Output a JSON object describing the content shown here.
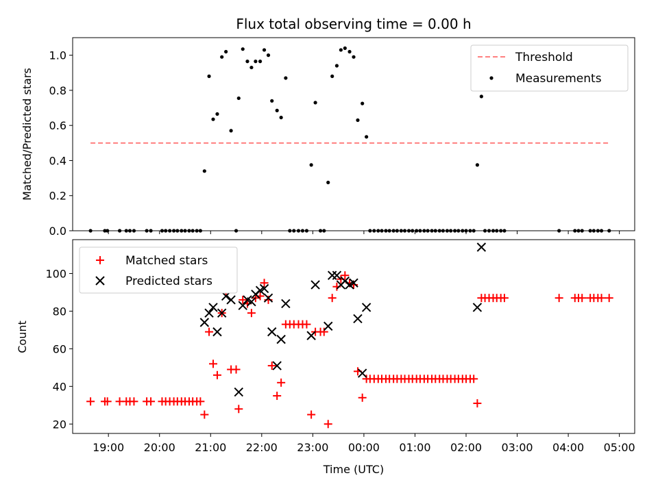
{
  "chart_data": [
    {
      "type": "scatter",
      "title": "Flux total observing time = 0.00 h",
      "ylabel": "Matched/Predicted stars",
      "xlabel": "",
      "xlim": [
        18.3,
        29.3
      ],
      "ylim": [
        0,
        1.1
      ],
      "yticks": [
        0.0,
        0.2,
        0.4,
        0.6,
        0.8,
        1.0
      ],
      "ytick_labels": [
        "0.0",
        "0.2",
        "0.4",
        "0.6",
        "0.8",
        "1.0"
      ],
      "legend_position": "top-right",
      "series": [
        {
          "name": "Threshold",
          "kind": "dashed-line",
          "color": "#ff7f7f",
          "points": [
            [
              18.65,
              0.5
            ],
            [
              28.8,
              0.5
            ]
          ]
        },
        {
          "name": "Measurements",
          "kind": "dot",
          "color": "#000000",
          "points": [
            [
              18.65,
              0
            ],
            [
              18.93,
              0
            ],
            [
              18.98,
              0
            ],
            [
              19.22,
              0
            ],
            [
              19.35,
              0
            ],
            [
              19.42,
              0
            ],
            [
              19.5,
              0
            ],
            [
              19.75,
              0
            ],
            [
              19.83,
              0
            ],
            [
              20.05,
              0
            ],
            [
              20.12,
              0
            ],
            [
              20.2,
              0
            ],
            [
              20.28,
              0
            ],
            [
              20.35,
              0
            ],
            [
              20.43,
              0
            ],
            [
              20.5,
              0
            ],
            [
              20.58,
              0
            ],
            [
              20.65,
              0
            ],
            [
              20.73,
              0
            ],
            [
              20.8,
              0
            ],
            [
              20.88,
              0.34
            ],
            [
              20.97,
              0.88
            ],
            [
              21.05,
              0.635
            ],
            [
              21.13,
              0.665
            ],
            [
              21.22,
              0.99
            ],
            [
              21.3,
              1.02
            ],
            [
              21.4,
              0.57
            ],
            [
              21.5,
              0
            ],
            [
              21.55,
              0.755
            ],
            [
              21.63,
              1.035
            ],
            [
              21.72,
              0.965
            ],
            [
              21.8,
              0.93
            ],
            [
              21.88,
              0.965
            ],
            [
              21.97,
              0.965
            ],
            [
              22.05,
              1.03
            ],
            [
              22.13,
              1.0
            ],
            [
              22.2,
              0.74
            ],
            [
              22.3,
              0.685
            ],
            [
              22.38,
              0.645
            ],
            [
              22.47,
              0.87
            ],
            [
              22.55,
              0
            ],
            [
              22.63,
              0
            ],
            [
              22.72,
              0
            ],
            [
              22.8,
              0
            ],
            [
              22.88,
              0
            ],
            [
              22.97,
              0.375
            ],
            [
              23.05,
              0.73
            ],
            [
              23.15,
              0
            ],
            [
              23.22,
              0
            ],
            [
              23.3,
              0.275
            ],
            [
              23.38,
              0.88
            ],
            [
              23.47,
              0.94
            ],
            [
              23.55,
              1.03
            ],
            [
              23.63,
              1.04
            ],
            [
              23.72,
              1.02
            ],
            [
              23.8,
              0.99
            ],
            [
              23.88,
              0.63
            ],
            [
              23.97,
              0.725
            ],
            [
              24.05,
              0.535
            ],
            [
              24.12,
              0
            ],
            [
              24.2,
              0
            ],
            [
              24.28,
              0
            ],
            [
              24.35,
              0
            ],
            [
              24.43,
              0
            ],
            [
              24.5,
              0
            ],
            [
              24.58,
              0
            ],
            [
              24.65,
              0
            ],
            [
              24.73,
              0
            ],
            [
              24.8,
              0
            ],
            [
              24.88,
              0
            ],
            [
              24.95,
              0
            ],
            [
              25.03,
              0
            ],
            [
              25.1,
              0
            ],
            [
              25.18,
              0
            ],
            [
              25.25,
              0
            ],
            [
              25.33,
              0
            ],
            [
              25.4,
              0
            ],
            [
              25.48,
              0
            ],
            [
              25.55,
              0
            ],
            [
              25.63,
              0
            ],
            [
              25.7,
              0
            ],
            [
              25.78,
              0
            ],
            [
              25.85,
              0
            ],
            [
              25.93,
              0
            ],
            [
              26.0,
              0
            ],
            [
              26.08,
              0
            ],
            [
              26.15,
              0
            ],
            [
              26.22,
              0.375
            ],
            [
              26.3,
              0.765
            ],
            [
              26.37,
              0
            ],
            [
              26.45,
              0
            ],
            [
              26.53,
              0
            ],
            [
              26.6,
              0
            ],
            [
              26.68,
              0
            ],
            [
              26.75,
              0
            ],
            [
              27.82,
              0
            ],
            [
              28.13,
              0
            ],
            [
              28.2,
              0
            ],
            [
              28.27,
              0
            ],
            [
              28.43,
              0
            ],
            [
              28.5,
              0
            ],
            [
              28.58,
              0
            ],
            [
              28.65,
              0
            ],
            [
              28.8,
              0
            ]
          ]
        }
      ]
    },
    {
      "type": "scatter",
      "title": "",
      "ylabel": "Count",
      "xlabel": "Time (UTC)",
      "xlim": [
        18.3,
        29.3
      ],
      "ylim": [
        15,
        118
      ],
      "yticks": [
        20,
        40,
        60,
        80,
        100
      ],
      "ytick_labels": [
        "20",
        "40",
        "60",
        "80",
        "100"
      ],
      "xticks": [
        19,
        20,
        21,
        22,
        23,
        24,
        25,
        26,
        27,
        28,
        29
      ],
      "xtick_labels": [
        "19:00",
        "20:00",
        "21:00",
        "22:00",
        "23:00",
        "00:00",
        "01:00",
        "02:00",
        "03:00",
        "04:00",
        "05:00"
      ],
      "legend_position": "top-left",
      "series": [
        {
          "name": "Matched stars",
          "kind": "plus",
          "color": "#ff0000",
          "points": [
            [
              18.65,
              32
            ],
            [
              18.93,
              32
            ],
            [
              18.98,
              32
            ],
            [
              19.22,
              32
            ],
            [
              19.35,
              32
            ],
            [
              19.42,
              32
            ],
            [
              19.5,
              32
            ],
            [
              19.75,
              32
            ],
            [
              19.83,
              32
            ],
            [
              20.05,
              32
            ],
            [
              20.12,
              32
            ],
            [
              20.2,
              32
            ],
            [
              20.28,
              32
            ],
            [
              20.35,
              32
            ],
            [
              20.43,
              32
            ],
            [
              20.5,
              32
            ],
            [
              20.58,
              32
            ],
            [
              20.65,
              32
            ],
            [
              20.73,
              32
            ],
            [
              20.8,
              32
            ],
            [
              20.88,
              25
            ],
            [
              20.97,
              69
            ],
            [
              21.05,
              52
            ],
            [
              21.13,
              46
            ],
            [
              21.22,
              79
            ],
            [
              21.3,
              90
            ],
            [
              21.4,
              49
            ],
            [
              21.5,
              49
            ],
            [
              21.55,
              28
            ],
            [
              21.63,
              86
            ],
            [
              21.72,
              84
            ],
            [
              21.8,
              79
            ],
            [
              21.88,
              87
            ],
            [
              21.97,
              88
            ],
            [
              22.05,
              95
            ],
            [
              22.13,
              86
            ],
            [
              22.2,
              51
            ],
            [
              22.3,
              35
            ],
            [
              22.38,
              42
            ],
            [
              22.47,
              73
            ],
            [
              22.55,
              73
            ],
            [
              22.63,
              73
            ],
            [
              22.72,
              73
            ],
            [
              22.8,
              73
            ],
            [
              22.88,
              73
            ],
            [
              22.97,
              25
            ],
            [
              23.05,
              69
            ],
            [
              23.15,
              69
            ],
            [
              23.22,
              69
            ],
            [
              23.3,
              20
            ],
            [
              23.38,
              87
            ],
            [
              23.47,
              93
            ],
            [
              23.55,
              97
            ],
            [
              23.63,
              99
            ],
            [
              23.72,
              95
            ],
            [
              23.8,
              94
            ],
            [
              23.88,
              48
            ],
            [
              23.97,
              34
            ],
            [
              24.05,
              44
            ],
            [
              24.12,
              44
            ],
            [
              24.2,
              44
            ],
            [
              24.28,
              44
            ],
            [
              24.35,
              44
            ],
            [
              24.43,
              44
            ],
            [
              24.5,
              44
            ],
            [
              24.58,
              44
            ],
            [
              24.65,
              44
            ],
            [
              24.73,
              44
            ],
            [
              24.8,
              44
            ],
            [
              24.88,
              44
            ],
            [
              24.95,
              44
            ],
            [
              25.03,
              44
            ],
            [
              25.1,
              44
            ],
            [
              25.18,
              44
            ],
            [
              25.25,
              44
            ],
            [
              25.33,
              44
            ],
            [
              25.4,
              44
            ],
            [
              25.48,
              44
            ],
            [
              25.55,
              44
            ],
            [
              25.63,
              44
            ],
            [
              25.7,
              44
            ],
            [
              25.78,
              44
            ],
            [
              25.85,
              44
            ],
            [
              25.93,
              44
            ],
            [
              26.0,
              44
            ],
            [
              26.08,
              44
            ],
            [
              26.15,
              44
            ],
            [
              26.22,
              31
            ],
            [
              26.3,
              87
            ],
            [
              26.37,
              87
            ],
            [
              26.45,
              87
            ],
            [
              26.53,
              87
            ],
            [
              26.6,
              87
            ],
            [
              26.68,
              87
            ],
            [
              26.75,
              87
            ],
            [
              27.82,
              87
            ],
            [
              28.13,
              87
            ],
            [
              28.2,
              87
            ],
            [
              28.27,
              87
            ],
            [
              28.43,
              87
            ],
            [
              28.5,
              87
            ],
            [
              28.58,
              87
            ],
            [
              28.65,
              87
            ],
            [
              28.8,
              87
            ]
          ]
        },
        {
          "name": "Predicted stars",
          "kind": "x",
          "color": "#000000",
          "points": [
            [
              20.88,
              74
            ],
            [
              20.97,
              79
            ],
            [
              21.05,
              82
            ],
            [
              21.13,
              69
            ],
            [
              21.22,
              79
            ],
            [
              21.3,
              88
            ],
            [
              21.4,
              86
            ],
            [
              21.55,
              37
            ],
            [
              21.63,
              83
            ],
            [
              21.72,
              86
            ],
            [
              21.8,
              85
            ],
            [
              21.88,
              89
            ],
            [
              21.97,
              91
            ],
            [
              22.05,
              92
            ],
            [
              22.13,
              87
            ],
            [
              22.2,
              69
            ],
            [
              22.3,
              51
            ],
            [
              22.38,
              65
            ],
            [
              22.47,
              84
            ],
            [
              22.97,
              67
            ],
            [
              23.05,
              94
            ],
            [
              23.3,
              72
            ],
            [
              23.38,
              99
            ],
            [
              23.47,
              99
            ],
            [
              23.55,
              94
            ],
            [
              23.63,
              96
            ],
            [
              23.72,
              94
            ],
            [
              23.8,
              95
            ],
            [
              23.88,
              76
            ],
            [
              23.97,
              47
            ],
            [
              24.05,
              82
            ],
            [
              26.22,
              82
            ],
            [
              26.3,
              114
            ]
          ]
        }
      ]
    }
  ]
}
